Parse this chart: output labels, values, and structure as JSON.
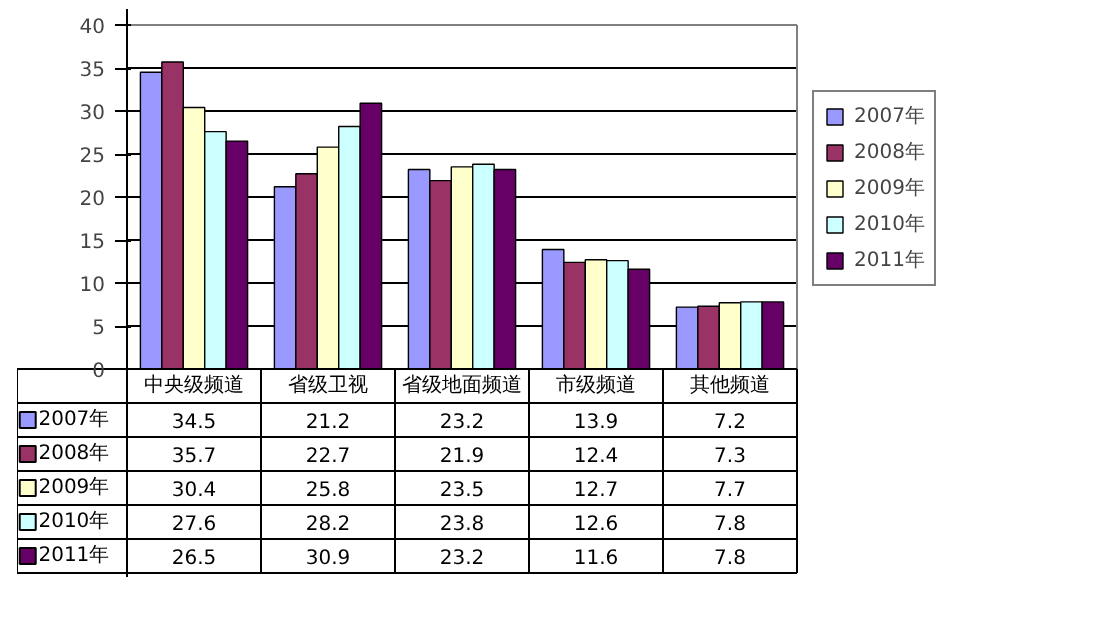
{
  "chart_data": {
    "type": "bar",
    "categories": [
      "中央级频道",
      "省级卫视",
      "省级地面频道",
      "市级频道",
      "其他频道"
    ],
    "series": [
      {
        "name": "2007年",
        "color": "#9999ff",
        "values": [
          34.5,
          21.2,
          23.2,
          13.9,
          7.2
        ]
      },
      {
        "name": "2008年",
        "color": "#993366",
        "values": [
          35.7,
          22.7,
          21.9,
          12.4,
          7.3
        ]
      },
      {
        "name": "2009年",
        "color": "#ffffcc",
        "values": [
          30.4,
          25.8,
          23.5,
          12.7,
          7.7
        ]
      },
      {
        "name": "2010年",
        "color": "#ccffff",
        "values": [
          27.6,
          28.2,
          23.8,
          12.6,
          7.8
        ]
      },
      {
        "name": "2011年",
        "color": "#660066",
        "values": [
          26.5,
          30.9,
          23.2,
          11.6,
          7.8
        ]
      }
    ],
    "ylim": [
      0,
      40
    ],
    "yticks": [
      0,
      5,
      10,
      15,
      20,
      25,
      30,
      35,
      40
    ],
    "grid": "y",
    "legend": "right",
    "data_labels": true
  }
}
